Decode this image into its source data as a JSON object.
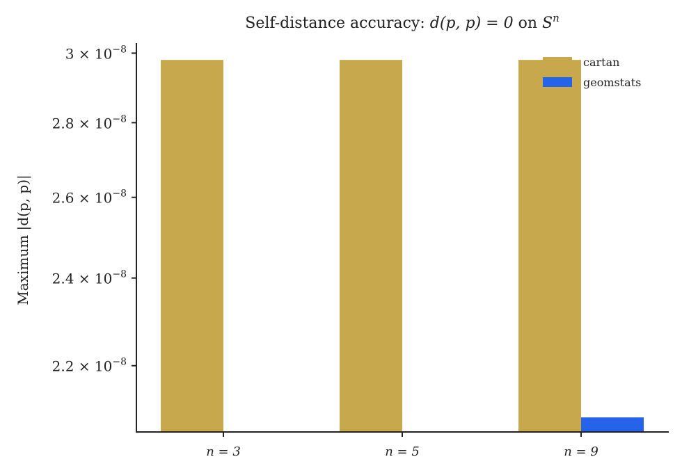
{
  "chart_data": {
    "type": "bar",
    "title_prefix": "Self-distance accuracy: ",
    "title_math": "d(p, p) = 0",
    "title_mid": " on ",
    "title_manifold": "S",
    "title_manifold_sup": "n",
    "ylabel": "Maximum |d(p, p)|",
    "yscale": "log",
    "ylim": [
      2.06e-08,
      3.03e-08
    ],
    "yticks": [
      {
        "value": 3e-08,
        "mantissa": "3",
        "exp": "−8"
      },
      {
        "value": 2.8e-08,
        "mantissa": "2.8",
        "exp": "−8"
      },
      {
        "value": 2.6e-08,
        "mantissa": "2.6",
        "exp": "−8"
      },
      {
        "value": 2.4e-08,
        "mantissa": "2.4",
        "exp": "−8"
      },
      {
        "value": 2.2e-08,
        "mantissa": "2.2",
        "exp": "−8"
      }
    ],
    "categories": [
      "n = 3",
      "n = 5",
      "n = 9"
    ],
    "series": [
      {
        "name": "cartan",
        "color": "#C8A84C",
        "values": [
          2.98e-08,
          2.98e-08,
          2.98e-08
        ]
      },
      {
        "name": "geomstats",
        "color": "#2563EB",
        "values": [
          null,
          null,
          2.09e-08
        ]
      }
    ],
    "legend_position": "top-right",
    "grid": false
  }
}
